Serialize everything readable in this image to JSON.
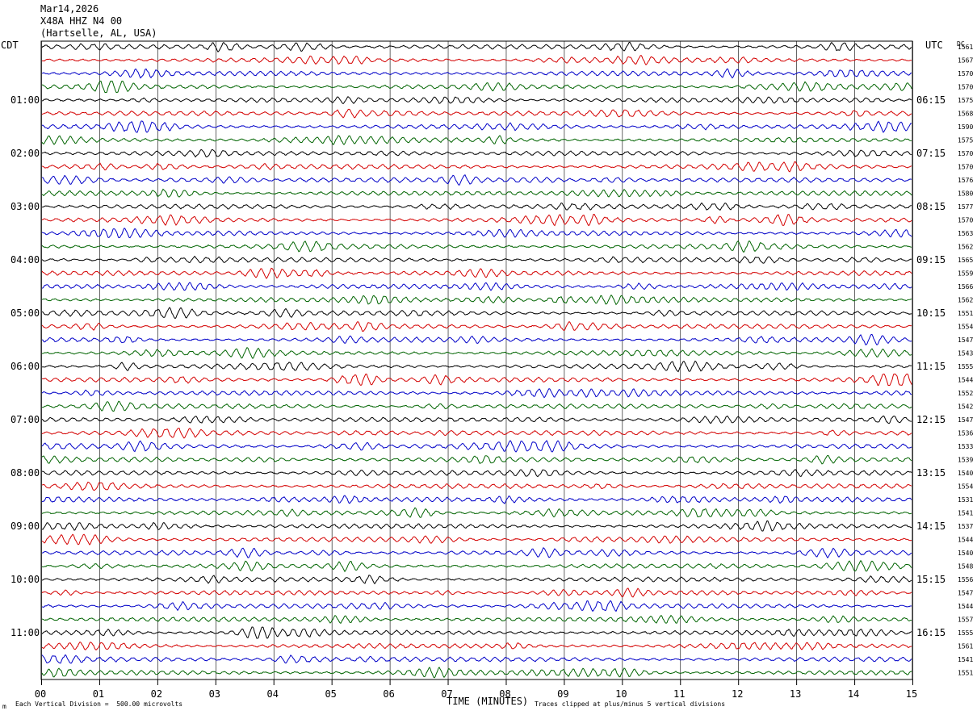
{
  "header": {
    "date": "Mar14,2026",
    "station": "X48A HHZ N4 00",
    "location": "(Hartselle, AL, USA)"
  },
  "labels": {
    "left_tz": "CDT",
    "right_tz": "UTC",
    "right_col": "DC",
    "xlabel": "TIME (MINUTES)",
    "footer_left": "Each Vertical Division =  500.00 microvolts",
    "footer_right": "Traces clipped at plus/minus 5 vertical divisions",
    "corner_mark": "m"
  },
  "colors": {
    "trace_cycle": [
      "#000000",
      "#d40000",
      "#0000c8",
      "#006400"
    ],
    "grid": "#000000",
    "background": "#ffffff"
  },
  "chart_data": {
    "type": "line",
    "title": "X48A HHZ N4 00",
    "xlabel": "TIME (MINUTES)",
    "xlim": [
      0,
      15
    ],
    "x_ticks": [
      "00",
      "01",
      "02",
      "03",
      "04",
      "05",
      "06",
      "07",
      "08",
      "09",
      "10",
      "11",
      "12",
      "13",
      "14",
      "15"
    ],
    "left_hour_labels": [
      "01:00",
      "02:00",
      "03:00",
      "04:00",
      "05:00",
      "06:00",
      "07:00",
      "08:00",
      "09:00",
      "10:00",
      "11:00"
    ],
    "right_hour_labels": [
      "06:15",
      "07:15",
      "08:15",
      "09:15",
      "10:15",
      "11:15",
      "12:15",
      "13:15",
      "14:15",
      "15:15",
      "16:15"
    ],
    "trace_dc_offsets": [
      1561,
      1567,
      1570,
      1570,
      1575,
      1568,
      1590,
      1575,
      1570,
      1570,
      1576,
      1580,
      1577,
      1570,
      1563,
      1562,
      1565,
      1559,
      1566,
      1562,
      1551,
      1554,
      1547,
      1543,
      1555,
      1544,
      1552,
      1542,
      1547,
      1536,
      1533,
      1539,
      1540,
      1554,
      1531,
      1541,
      1537,
      1544,
      1540,
      1548,
      1556,
      1547,
      1544,
      1557,
      1555,
      1561,
      1541,
      1551
    ],
    "traces_per_hour": 4,
    "minutes_per_trace": 15
  }
}
